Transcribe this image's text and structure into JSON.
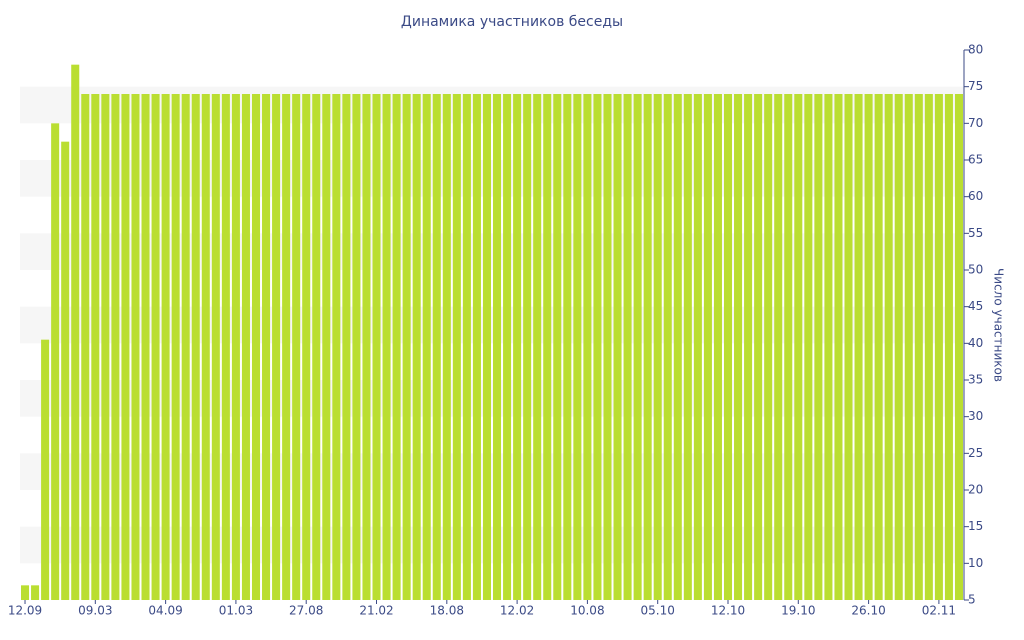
{
  "chart_data": {
    "type": "bar",
    "title": "Динамика участников беседы",
    "y_label": "Число участников",
    "categories": [
      "12.09",
      null,
      null,
      null,
      null,
      null,
      null,
      "09.03",
      null,
      null,
      null,
      null,
      null,
      null,
      "04.09",
      null,
      null,
      null,
      null,
      null,
      null,
      "01.03",
      null,
      null,
      null,
      null,
      null,
      null,
      "27.08",
      null,
      null,
      null,
      null,
      null,
      null,
      "21.02",
      null,
      null,
      null,
      null,
      null,
      null,
      "18.08",
      null,
      null,
      null,
      null,
      null,
      null,
      "12.02",
      null,
      null,
      null,
      null,
      null,
      null,
      "10.08",
      null,
      null,
      null,
      null,
      null,
      null,
      "05.10",
      null,
      null,
      null,
      null,
      null,
      null,
      "12.10",
      null,
      null,
      null,
      null,
      null,
      null,
      "19.10",
      null,
      null,
      null,
      null,
      null,
      null,
      "26.10",
      null,
      null,
      null,
      null,
      null,
      null,
      "02.11",
      null,
      null
    ],
    "values": [
      7,
      7,
      40.5,
      70,
      67.5,
      78,
      74,
      74,
      74,
      74,
      74,
      74,
      74,
      74,
      74,
      74,
      74,
      74,
      74,
      74,
      74,
      74,
      74,
      74,
      74,
      74,
      74,
      74,
      74,
      74,
      74,
      74,
      74,
      74,
      74,
      74,
      74,
      74,
      74,
      74,
      74,
      74,
      74,
      74,
      74,
      74,
      74,
      74,
      74,
      74,
      74,
      74,
      74,
      74,
      74,
      74,
      74,
      74,
      74,
      74,
      74,
      74,
      74,
      74,
      74,
      74,
      74,
      74,
      74,
      74,
      74,
      74,
      74,
      74,
      74,
      74,
      74,
      74,
      74,
      74,
      74,
      74,
      74,
      74,
      74,
      74,
      74,
      74,
      74,
      74,
      74,
      74,
      74,
      74
    ],
    "color": "#bade31",
    "ylim": [
      5,
      80
    ],
    "yticks": [
      5,
      10,
      15,
      20,
      25,
      30,
      35,
      40,
      45,
      50,
      55,
      60,
      65,
      70,
      75,
      80
    ],
    "y_axis_side": "right",
    "grid": true
  }
}
